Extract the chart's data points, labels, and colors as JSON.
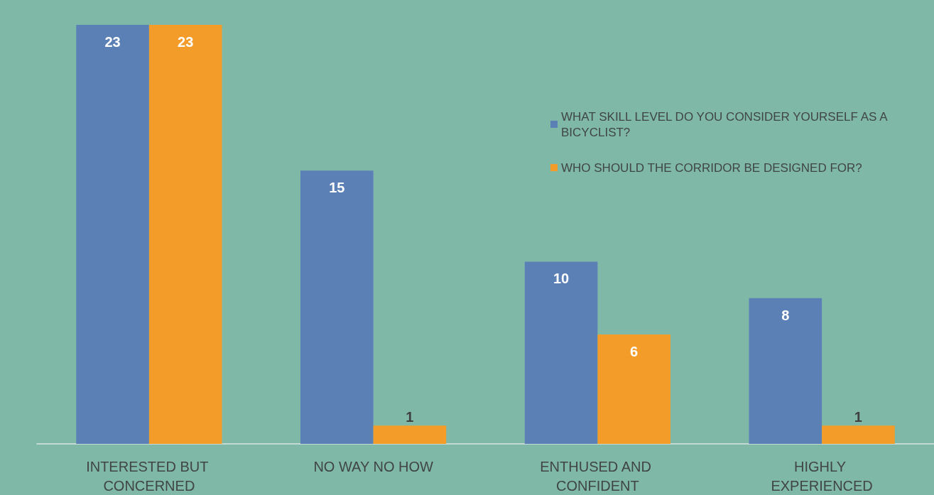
{
  "chart_data": {
    "type": "bar",
    "categories": [
      "INTERESTED BUT CONCERNED",
      "NO WAY NO HOW",
      "ENTHUSED AND CONFIDENT",
      "HIGHLY EXPERIENCED"
    ],
    "series": [
      {
        "name": "WHAT SKILL LEVEL DO YOU CONSIDER YOURSELF AS A BICYCLIST?",
        "color": "#5b80b5",
        "values": [
          23,
          15,
          10,
          8
        ]
      },
      {
        "name": "WHO SHOULD THE CORRIDOR BE DESIGNED FOR?",
        "color": "#f39c2a",
        "values": [
          23,
          1,
          6,
          1
        ]
      }
    ],
    "data_labels": true,
    "legend": "top right",
    "grid": false
  }
}
